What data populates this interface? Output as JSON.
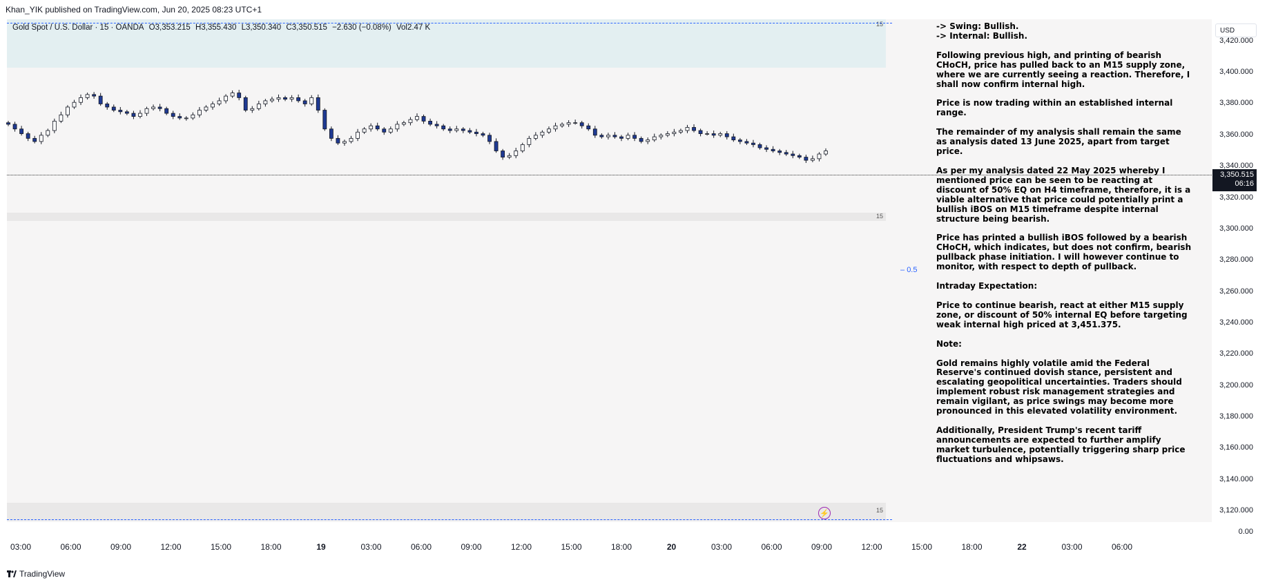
{
  "header": {
    "text": "Khan_YIK published on TradingView.com, Jun 20, 2025 08:23 UTC+1"
  },
  "symbol": {
    "name": "Gold Spot / U.S. Dollar · 15 · OANDA",
    "open": "O3,353.215",
    "high": "H3,355.430",
    "low": "L3,350.340",
    "close": "C3,350.515",
    "change": "−2.630 (−0.08%)",
    "volume": "Vol2.47 K"
  },
  "zone_labels": {
    "top": "15",
    "mid": "15",
    "bot": "15"
  },
  "fib_label": "0.5",
  "currency": "USD",
  "last_price": {
    "price": "3,350.515",
    "countdown": "06:16"
  },
  "y_zero": "0.00",
  "footer": {
    "brand": "TradingView"
  },
  "note": [
    "-> Swing: Bullish.",
    "-> Internal: Bullish.",
    "Following previous high, and printing of bearish CHoCH, price has pulled back to an M15 supply zone, where we are currently seeing a reaction.  Therefore, I shall now confirm internal high.",
    "Price is now trading within an established internal range.",
    "The remainder of my analysis shall remain the same as analysis dated  13 June 2025, apart from target price.",
    "As per my analysis dated 22 May 2025 whereby I mentioned price can be seen to be reacting at discount of 50% EQ on H4 timeframe, therefore, it is a viable alternative that price could potentially print a bullish iBOS on M15 timeframe despite internal structure being bearish.",
    "Price has printed a bullish iBOS followed by a bearish CHoCH, which indicates, but does not confirm, bearish pullback phase initiation.  I will however continue to monitor, with respect to depth of pullback.",
    "Intraday Expectation:",
    "Price to continue bearish, react at either M15 supply zone, or discount of 50% internal EQ before targeting weak internal high priced at 3,451.375.",
    "Note:",
    "Gold remains highly volatile amid the Federal Reserve's continued dovish stance, persistent and escalating geopolitical uncertainties. Traders should implement robust risk management strategies and remain vigilant, as price swings may become more pronounced in this elevated volatility environment.",
    "Additionally, President Trump's recent tariff announcements are expected to further amplify market turbulence, potentially triggering sharp price fluctuations and whipsaws."
  ],
  "chart_data": {
    "type": "line",
    "title": "Gold Spot / U.S. Dollar · 15 · OANDA",
    "xlabel": "",
    "ylabel": "",
    "x_ticks": [
      "03:00",
      "06:00",
      "09:00",
      "12:00",
      "15:00",
      "18:00",
      "19",
      "03:00",
      "06:00",
      "09:00",
      "12:00",
      "15:00",
      "18:00",
      "20",
      "03:00",
      "06:00",
      "09:00",
      "12:00",
      "15:00",
      "18:00",
      "22",
      "03:00",
      "06:00"
    ],
    "y_ticks": [
      3420,
      3400,
      3380,
      3360,
      3340,
      3320,
      3300,
      3280,
      3260,
      3240,
      3220,
      3200,
      3180,
      3160,
      3140,
      3120
    ],
    "y_tick_labels": [
      "3,420.000",
      "3,400.000",
      "3,380.000",
      "3,360.000",
      "3,340.000",
      "3,320.000",
      "3,300.000",
      "3,280.000",
      "3,260.000",
      "3,240.000",
      "3,220.000",
      "3,200.000",
      "3,180.000",
      "3,160.000",
      "3,140.000",
      "3,120.000"
    ],
    "ylim": [
      3113,
      3434
    ],
    "last_price": 3350.515,
    "fib_level": 0.5,
    "series": [
      {
        "values": [
          3367,
          3364,
          3361,
          3358,
          3356,
          3360,
          3363,
          3369,
          3373,
          3378,
          3381,
          3384,
          3386,
          3385,
          3380,
          3378,
          3376,
          3375,
          3374,
          3372,
          3374,
          3377,
          3378,
          3377,
          3374,
          3372,
          3371,
          3371,
          3373,
          3376,
          3378,
          3380,
          3382,
          3385,
          3387,
          3384,
          3376,
          3377,
          3380,
          3382,
          3383,
          3384,
          3383,
          3384,
          3382,
          3380,
          3384,
          3376,
          3364,
          3358,
          3355,
          3356,
          3358,
          3362,
          3364,
          3366,
          3364,
          3362,
          3364,
          3367,
          3368,
          3370,
          3372,
          3369,
          3367,
          3366,
          3364,
          3363,
          3364,
          3363,
          3362,
          3361,
          3360,
          3356,
          3350,
          3346,
          3347,
          3350,
          3354,
          3358,
          3360,
          3362,
          3364,
          3366,
          3367,
          3368,
          3368,
          3366,
          3364,
          3360,
          3359,
          3360,
          3359,
          3358,
          3360,
          3358,
          3356,
          3357,
          3359,
          3360,
          3361,
          3362,
          3363,
          3365,
          3363,
          3361,
          3361,
          3360,
          3361,
          3359,
          3357,
          3356,
          3355,
          3354,
          3352,
          3351,
          3350,
          3349,
          3348,
          3347,
          3346,
          3344,
          3345,
          3348,
          3350
        ]
      }
    ]
  }
}
